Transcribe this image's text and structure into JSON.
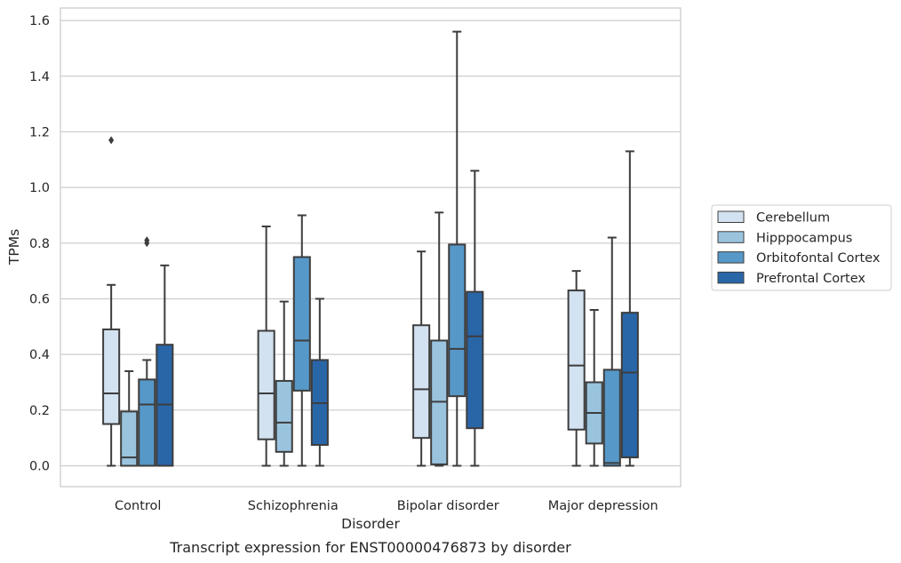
{
  "chart_data": {
    "type": "box",
    "xlabel": "Disorder",
    "ylabel": "TPMs",
    "caption": "Transcript expression for ENST00000476873 by disorder",
    "ylim": [
      -0.075,
      1.645
    ],
    "yticks": [
      0.0,
      0.2,
      0.4,
      0.6,
      0.8,
      1.0,
      1.2,
      1.4,
      1.6
    ],
    "ytick_labels": [
      "0.0",
      "0.2",
      "0.4",
      "0.6",
      "0.8",
      "1.0",
      "1.2",
      "1.4",
      "1.6"
    ],
    "grid": "horizontal",
    "legend_position": "right",
    "categories": [
      "Control",
      "Schizophrenia",
      "Bipolar disorder",
      "Major depression"
    ],
    "series": [
      {
        "name": "Cerebellum",
        "color": "#d3e2f1",
        "boxes": [
          {
            "whisker_low": 0.0,
            "q1": 0.15,
            "median": 0.26,
            "q3": 0.49,
            "whisker_high": 0.65,
            "outliers": [
              1.17
            ]
          },
          {
            "whisker_low": 0.0,
            "q1": 0.095,
            "median": 0.26,
            "q3": 0.485,
            "whisker_high": 0.86,
            "outliers": []
          },
          {
            "whisker_low": 0.0,
            "q1": 0.1,
            "median": 0.275,
            "q3": 0.505,
            "whisker_high": 0.77,
            "outliers": []
          },
          {
            "whisker_low": 0.0,
            "q1": 0.13,
            "median": 0.36,
            "q3": 0.63,
            "whisker_high": 0.7,
            "outliers": []
          }
        ]
      },
      {
        "name": "Hipppocampus",
        "color": "#9ac4de",
        "boxes": [
          {
            "whisker_low": 0.0,
            "q1": 0.0,
            "median": 0.03,
            "q3": 0.195,
            "whisker_high": 0.34,
            "outliers": []
          },
          {
            "whisker_low": 0.0,
            "q1": 0.05,
            "median": 0.155,
            "q3": 0.305,
            "whisker_high": 0.59,
            "outliers": []
          },
          {
            "whisker_low": 0.0,
            "q1": 0.005,
            "median": 0.23,
            "q3": 0.45,
            "whisker_high": 0.91,
            "outliers": []
          },
          {
            "whisker_low": 0.0,
            "q1": 0.08,
            "median": 0.19,
            "q3": 0.3,
            "whisker_high": 0.56,
            "outliers": []
          }
        ]
      },
      {
        "name": "Orbitofontal Cortex",
        "color": "#5698c8",
        "boxes": [
          {
            "whisker_low": 0.0,
            "q1": 0.0,
            "median": 0.22,
            "q3": 0.31,
            "whisker_high": 0.38,
            "outliers": [
              0.8,
              0.81
            ]
          },
          {
            "whisker_low": 0.0,
            "q1": 0.27,
            "median": 0.45,
            "q3": 0.75,
            "whisker_high": 0.9,
            "outliers": []
          },
          {
            "whisker_low": 0.0,
            "q1": 0.25,
            "median": 0.42,
            "q3": 0.795,
            "whisker_high": 1.56,
            "outliers": []
          },
          {
            "whisker_low": 0.0,
            "q1": 0.0,
            "median": 0.01,
            "q3": 0.345,
            "whisker_high": 0.82,
            "outliers": []
          }
        ]
      },
      {
        "name": "Prefrontal Cortex",
        "color": "#2966a8",
        "boxes": [
          {
            "whisker_low": 0.0,
            "q1": 0.0,
            "median": 0.22,
            "q3": 0.435,
            "whisker_high": 0.72,
            "outliers": []
          },
          {
            "whisker_low": 0.0,
            "q1": 0.075,
            "median": 0.225,
            "q3": 0.38,
            "whisker_high": 0.6,
            "outliers": []
          },
          {
            "whisker_low": 0.0,
            "q1": 0.135,
            "median": 0.465,
            "q3": 0.625,
            "whisker_high": 1.06,
            "outliers": []
          },
          {
            "whisker_low": 0.0,
            "q1": 0.03,
            "median": 0.335,
            "q3": 0.55,
            "whisker_high": 1.13,
            "outliers": []
          }
        ]
      }
    ]
  }
}
